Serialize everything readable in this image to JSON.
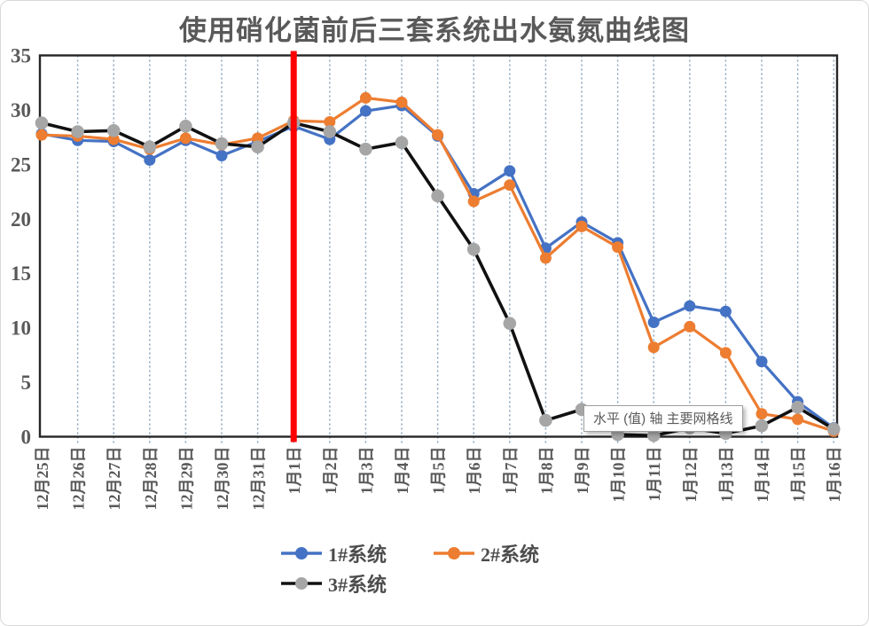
{
  "title": "使用硝化菌前后三套系统出水氨氮曲线图",
  "tooltip": {
    "text": "水平 (值) 轴 主要网格线"
  },
  "colors": {
    "series1": "#4472C4",
    "series2": "#ED7D31",
    "series3_line": "#111111",
    "series3_marker": "#A6A6A6",
    "red_line": "#FE0000",
    "gridline": "#7f9db9",
    "axis_border": "#262626",
    "tick_text": "#595959"
  },
  "chart_data": {
    "type": "line",
    "title": "使用硝化菌前后三套系统出水氨氮曲线图",
    "xlabel": "",
    "ylabel": "",
    "ylim": [
      0,
      35
    ],
    "yticks": [
      0,
      5,
      10,
      15,
      20,
      25,
      30,
      35
    ],
    "grid": "vertical-dotted",
    "legend_position": "bottom",
    "red_line_category": "1月1日",
    "categories": [
      "12月25日",
      "12月26日",
      "12月27日",
      "12月28日",
      "12月29日",
      "12月30日",
      "12月31日",
      "1月1日",
      "1月2日",
      "1月3日",
      "1月4日",
      "1月5日",
      "1月6日",
      "1月7日",
      "1月8日",
      "1月9日",
      "1月10日",
      "1月11日",
      "1月12日",
      "1月13日",
      "1月14日",
      "1月15日",
      "1月16日"
    ],
    "series": [
      {
        "name": "1#系统",
        "line_color_key": "series1",
        "marker_color_key": "series1",
        "values": [
          27.8,
          27.2,
          27.1,
          25.4,
          27.2,
          25.8,
          27.1,
          28.5,
          27.3,
          29.9,
          30.4,
          27.6,
          22.3,
          24.4,
          17.3,
          19.7,
          17.8,
          10.5,
          12.0,
          11.5,
          6.9,
          3.2,
          0.8
        ]
      },
      {
        "name": "2#系统",
        "line_color_key": "series2",
        "marker_color_key": "series2",
        "values": [
          27.7,
          27.6,
          27.3,
          26.4,
          27.4,
          26.8,
          27.4,
          29.0,
          28.9,
          31.1,
          30.7,
          27.7,
          21.6,
          23.1,
          16.4,
          19.3,
          17.4,
          8.2,
          10.1,
          7.7,
          2.1,
          1.6,
          0.5
        ]
      },
      {
        "name": "3#系统",
        "line_color_key": "series3_line",
        "marker_color_key": "series3_marker",
        "values": [
          28.8,
          28.0,
          28.1,
          26.6,
          28.5,
          26.9,
          26.6,
          28.8,
          28.0,
          26.4,
          27.0,
          22.1,
          17.2,
          10.4,
          1.5,
          2.5,
          0.2,
          0.1,
          0.8,
          0.3,
          1.0,
          2.7,
          0.7
        ]
      }
    ]
  },
  "legend": {
    "items": [
      {
        "label": "1#系统"
      },
      {
        "label": "2#系统"
      },
      {
        "label": "3#系统"
      }
    ]
  }
}
